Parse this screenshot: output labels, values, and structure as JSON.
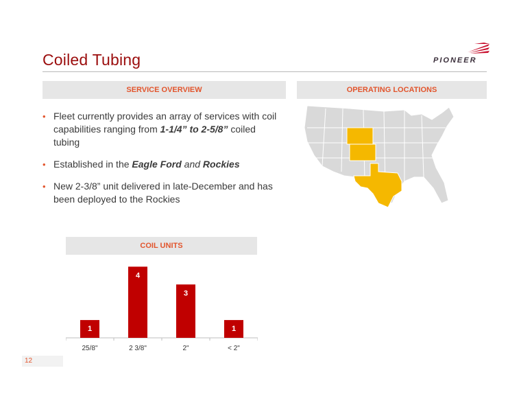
{
  "slide": {
    "title": "Coiled Tubing",
    "page_number": "12"
  },
  "logo": {
    "text": "PIONEER",
    "icon": "pioneer-logo-icon"
  },
  "service_overview": {
    "heading": "SERVICE OVERVIEW",
    "bullets": [
      {
        "pre": "Fleet currently provides an array of services with coil capabilities ranging from ",
        "bold": "1-1/4” to 2-5/8”",
        "post": " coiled tubing"
      },
      {
        "pre": "Established in the ",
        "bold1": "Eagle Ford",
        "mid": " and ",
        "bold2": "Rockies"
      },
      {
        "text": "New 2-3/8” unit delivered in late-December and has been deployed to the Rockies"
      }
    ]
  },
  "operating_locations": {
    "heading": "OPERATING LOCATIONS",
    "highlight_color": "#f5b800",
    "base_color": "#d9d9d9",
    "highlighted_states": [
      "Wyoming",
      "Colorado",
      "Texas"
    ]
  },
  "coil_units": {
    "heading": "COIL UNITS"
  },
  "chart_data": {
    "type": "bar",
    "title": "COIL UNITS",
    "categories": [
      "25/8\"",
      "2 3/8\"",
      "2\"",
      "< 2\""
    ],
    "values": [
      1,
      4,
      3,
      1
    ],
    "bar_color": "#c00000",
    "ylim": [
      0,
      4.4
    ],
    "grid": false,
    "xlabel": "",
    "ylabel": ""
  }
}
